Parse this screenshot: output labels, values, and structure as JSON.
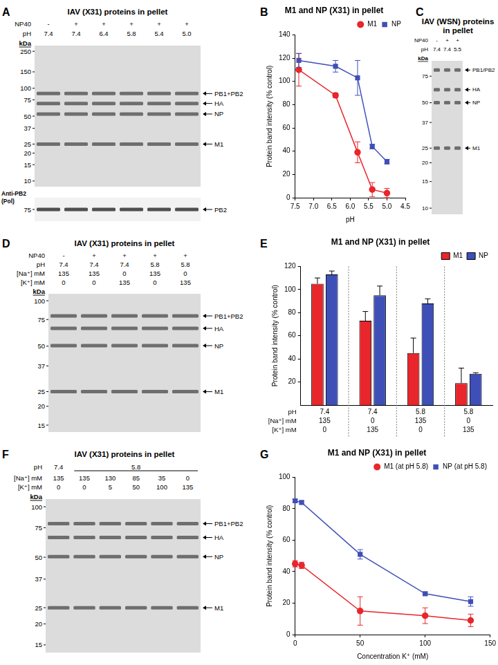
{
  "gels": [
    {
      "panel_label": "A",
      "title": "IAV (X31) proteins in pellet",
      "lane_rows": [
        {
          "label": "NP40",
          "values": [
            "-",
            "+",
            "+",
            "+",
            "+",
            "+"
          ]
        },
        {
          "label": "pH",
          "values": [
            "7.4",
            "7.4",
            "6.4",
            "5.8",
            "5.4",
            "5.0"
          ]
        }
      ],
      "marker_unit": "kDa",
      "markers": [
        250,
        150,
        100,
        75,
        50,
        37,
        25,
        20,
        15,
        10
      ],
      "bands": [
        "PB1+PB2",
        "HA",
        "NP",
        "M1"
      ],
      "blot": {
        "label": [
          "Anti-PB2",
          "(Pol)"
        ],
        "markers": [
          75
        ],
        "bands": [
          "PB2"
        ]
      }
    },
    {
      "panel_label": "C",
      "title": "IAV (WSN) proteins in pellet",
      "lane_rows": [
        {
          "label": "NP40",
          "values": [
            "-",
            "+",
            "+"
          ]
        },
        {
          "label": "pH",
          "values": [
            "7.4",
            "7.4",
            "5.5"
          ]
        }
      ],
      "marker_unit": "kDa",
      "markers": [
        75,
        50,
        37,
        25,
        20,
        15,
        10
      ],
      "bands": [
        "PB1/PB2",
        "HA",
        "NP",
        "M1"
      ]
    },
    {
      "panel_label": "D",
      "title": "IAV (X31) proteins in pellet",
      "lane_rows": [
        {
          "label": "NP40",
          "values": [
            "-",
            "+",
            "+",
            "+",
            "+"
          ]
        },
        {
          "label": "pH",
          "values": [
            "7.4",
            "7.4",
            "7.4",
            "5.8",
            "5.8"
          ]
        },
        {
          "label": "[Na⁺] mM",
          "values": [
            "135",
            "135",
            "0",
            "135",
            "0"
          ]
        },
        {
          "label": "[K⁺] mM",
          "values": [
            "0",
            "0",
            "135",
            "0",
            "135"
          ]
        }
      ],
      "marker_unit": "kDa",
      "markers": [
        100,
        75,
        50,
        37,
        25,
        20,
        15
      ],
      "bands": [
        "PB1+PB2",
        "HA",
        "NP",
        "M1"
      ]
    },
    {
      "panel_label": "F",
      "title": "IAV (X31) proteins in pellet",
      "lane_rows": [
        {
          "label": "pH",
          "values": [
            "7.4",
            "5.8"
          ],
          "spans": [
            1,
            5
          ]
        },
        {
          "label": "[Na⁺] mM",
          "values": [
            "135",
            "135",
            "130",
            "85",
            "35",
            "0"
          ]
        },
        {
          "label": "[K⁺] mM",
          "values": [
            "0",
            "0",
            "5",
            "50",
            "100",
            "135"
          ]
        }
      ],
      "marker_unit": "kDa",
      "markers": [
        100,
        75,
        50,
        37,
        25,
        20,
        15
      ],
      "bands": [
        "PB1+PB2",
        "HA",
        "NP",
        "M1"
      ]
    }
  ],
  "chart_data": [
    {
      "panel_label": "B",
      "type": "line",
      "title": "M1 and NP (X31) in pellet",
      "x_label": "pH",
      "y_label": "Protein band intensity (% control)",
      "x": [
        7.4,
        6.4,
        5.8,
        5.4,
        5.0
      ],
      "series": [
        {
          "name": "M1",
          "color": "#e8262b",
          "marker": "circle",
          "values": [
            110,
            88,
            39,
            7,
            4
          ],
          "errors": [
            14,
            2,
            9,
            6,
            4
          ]
        },
        {
          "name": "NP",
          "color": "#3f4fb8",
          "marker": "square",
          "values": [
            118,
            113,
            103,
            44,
            31
          ],
          "errors": [
            6,
            5,
            15,
            2,
            2
          ]
        }
      ],
      "xlim": [
        7.5,
        4.5
      ],
      "xticks": [
        7.5,
        {
          "value": 7,
          "label": "7.0"
        },
        6.5,
        {
          "value": 6,
          "label": "6.0"
        },
        5.5,
        {
          "value": 5,
          "label": "5.0"
        },
        4.5
      ],
      "ylim": [
        0,
        140
      ],
      "yticks": [
        0,
        20,
        40,
        60,
        80,
        100,
        120,
        140
      ],
      "legend": "top-right",
      "grid": false
    },
    {
      "panel_label": "E",
      "type": "bar",
      "title": "M1 and NP (X31) in pellet",
      "y_label": "Protein band intensity (% control)",
      "categories": [
        [
          "7.4",
          "135",
          "0"
        ],
        [
          "7.4",
          "0",
          "135"
        ],
        [
          "5.8",
          "135",
          "0"
        ],
        [
          "5.8",
          "0",
          "135"
        ]
      ],
      "category_rows": [
        "pH",
        "[Na⁺] mM",
        "[K⁺] mM"
      ],
      "series": [
        {
          "name": "M1",
          "color": "#e8262b",
          "values": [
            105,
            73,
            45,
            19
          ],
          "errors": [
            5,
            8,
            13,
            13
          ]
        },
        {
          "name": "NP",
          "color": "#3f4fb8",
          "values": [
            113,
            95,
            88,
            27
          ],
          "errors": [
            3,
            8,
            4,
            1
          ]
        }
      ],
      "ylim": [
        0,
        120
      ],
      "yticks": [
        20,
        40,
        60,
        80,
        100,
        120
      ],
      "legend": "top-right",
      "grid": false
    },
    {
      "panel_label": "G",
      "type": "line",
      "title": "M1 and NP (X31) in pellet",
      "x_label": "Concentration K⁺ (mM)",
      "y_label": "Protein band intensity (% control)",
      "x": [
        0,
        5,
        50,
        100,
        135
      ],
      "series": [
        {
          "name": "M1 (at pH 5.8)",
          "color": "#e8262b",
          "marker": "circle",
          "values": [
            45,
            44,
            15,
            12,
            9
          ],
          "errors": [
            2,
            2,
            9,
            5,
            4
          ]
        },
        {
          "name": "NP (at pH 5.8)",
          "color": "#3f4fb8",
          "marker": "square",
          "values": [
            85,
            84,
            51,
            26,
            21
          ],
          "errors": [
            1,
            1,
            3,
            1,
            3
          ]
        }
      ],
      "xlim": [
        0,
        150
      ],
      "xticks": [
        0,
        50,
        100,
        150
      ],
      "ylim": [
        0,
        100
      ],
      "yticks": [
        0,
        20,
        40,
        60,
        80,
        100
      ],
      "legend": "top-right",
      "grid": false
    }
  ]
}
